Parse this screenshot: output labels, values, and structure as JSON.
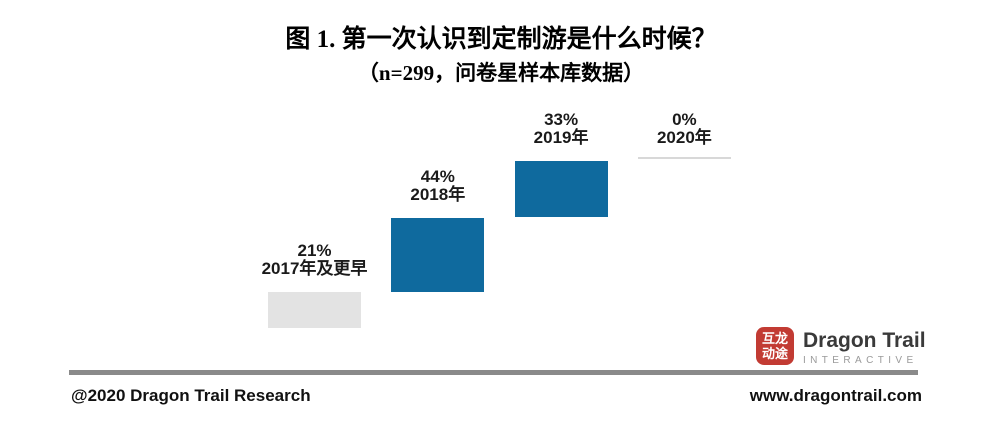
{
  "title": "图 1. 第一次认识到定制游是什么时候？",
  "subtitle": "（n=299，问卷星样本库数据）",
  "chart_data": {
    "type": "bar",
    "subtype": "waterfall",
    "title": "图 1. 第一次认识到定制游是什么时候？",
    "note": "n=299, 问卷星样本库数据",
    "categories": [
      "2017年及更早",
      "2018年",
      "2019年",
      "2020年"
    ],
    "values": [
      21,
      44,
      33,
      0
    ],
    "unit": "%",
    "xlabel": "",
    "ylabel": "",
    "legend": false,
    "gridlines": false,
    "points": [
      {
        "pct": "21%",
        "year": "2017年及更早",
        "value": 21,
        "color": "#E3E3E3"
      },
      {
        "pct": "44%",
        "year": "2018年",
        "value": 44,
        "color": "#0F6A9E"
      },
      {
        "pct": "33%",
        "year": "2019年",
        "value": 33,
        "color": "#0F6A9E"
      },
      {
        "pct": "0%",
        "year": "2020年",
        "value": 0,
        "color": "#D8D8D8"
      }
    ]
  },
  "logo": {
    "seal_line1": "互龙",
    "seal_line2": "动途",
    "seal_color": "#C23B33",
    "name": "Dragon Trail",
    "tagline": "INTERACTIVE"
  },
  "footer": {
    "left": "@2020 Dragon Trail Research",
    "right": "www.dragontrail.com"
  },
  "colors": {
    "bar_blue": "#0F6A9E",
    "bar_gray": "#E3E3E3",
    "zero_line": "#D8D8D8",
    "divider": "#8A8A8A"
  }
}
